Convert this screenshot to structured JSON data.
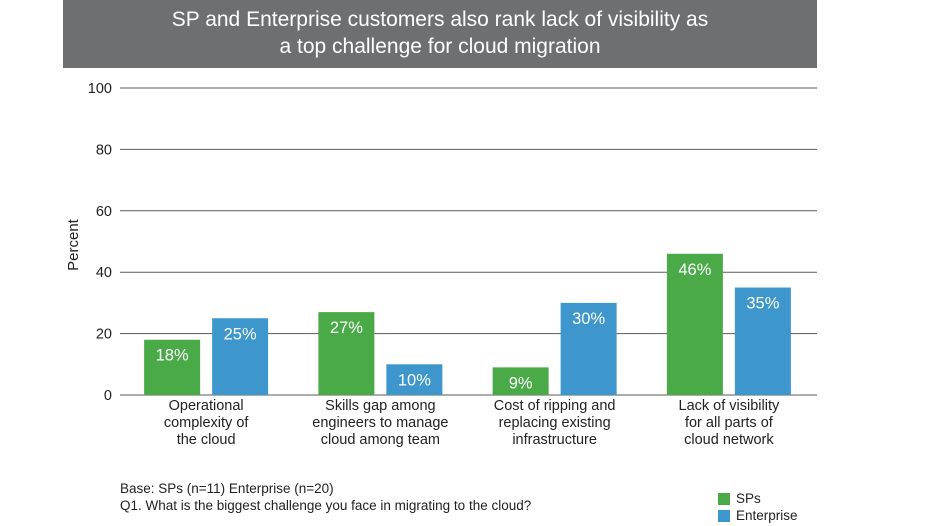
{
  "chart_data": {
    "type": "bar",
    "title_lines": [
      "SP and Enterprise customers also rank lack of visibility as",
      "a top challenge for cloud migration"
    ],
    "ylabel": "Percent",
    "ylim": [
      0,
      100
    ],
    "yticks": [
      0,
      20,
      40,
      60,
      80,
      100
    ],
    "grid": true,
    "categories": [
      [
        "Operational",
        "complexity of",
        "the cloud"
      ],
      [
        "Skills gap among",
        "engineers to manage",
        "cloud among team"
      ],
      [
        "Cost of ripping and",
        "replacing existing",
        "infrastructure"
      ],
      [
        "Lack of visibility",
        "for all parts of",
        "cloud network"
      ]
    ],
    "series": [
      {
        "name": "SPs",
        "color": "#4aaa48",
        "values": [
          18,
          27,
          9,
          46
        ],
        "labels": [
          "18%",
          "27%",
          "9%",
          "46%"
        ]
      },
      {
        "name": "Enterprise",
        "color": "#3d97cc",
        "values": [
          25,
          10,
          30,
          35
        ],
        "labels": [
          "25%",
          "10%",
          "30%",
          "35%"
        ]
      }
    ],
    "legend_position": "bottom-right"
  },
  "footnote": {
    "base": "Base: SPs (n=11) Enterprise (n=20)",
    "question": "Q1. What is the biggest challenge you face in migrating to the cloud?"
  }
}
